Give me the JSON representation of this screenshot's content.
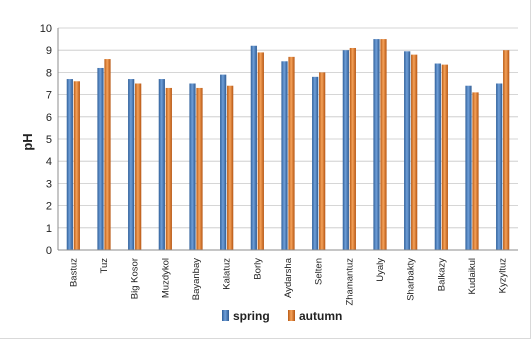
{
  "chart_data": {
    "type": "bar",
    "ylabel": "pH",
    "ylim": [
      0,
      10
    ],
    "yticks": [
      0,
      1,
      2,
      3,
      4,
      5,
      6,
      7,
      8,
      9,
      10
    ],
    "grid": true,
    "legend_position": "bottom",
    "categories": [
      "Bastuz",
      "Tuz",
      "Big Kosor",
      "Muzdykol",
      "Bayanbay",
      "Kalatuz",
      "Borly",
      "Aydarsha",
      "Selten",
      "Zhamantuz",
      "Uyaly",
      "Sharbakty",
      "Balkazy",
      "Kudaikul",
      "Kyzyltuz"
    ],
    "series": [
      {
        "name": "spring",
        "color": "#4f81bd",
        "values": [
          7.7,
          8.2,
          7.7,
          7.7,
          7.5,
          7.9,
          9.2,
          8.5,
          7.8,
          9.0,
          9.5,
          8.95,
          8.4,
          7.4,
          7.5
        ]
      },
      {
        "name": "autumn",
        "color": "#e8823a",
        "values": [
          7.6,
          8.6,
          7.5,
          7.3,
          7.3,
          7.4,
          8.9,
          8.7,
          8.0,
          9.1,
          9.5,
          8.8,
          8.35,
          7.1,
          9.0
        ]
      }
    ]
  }
}
